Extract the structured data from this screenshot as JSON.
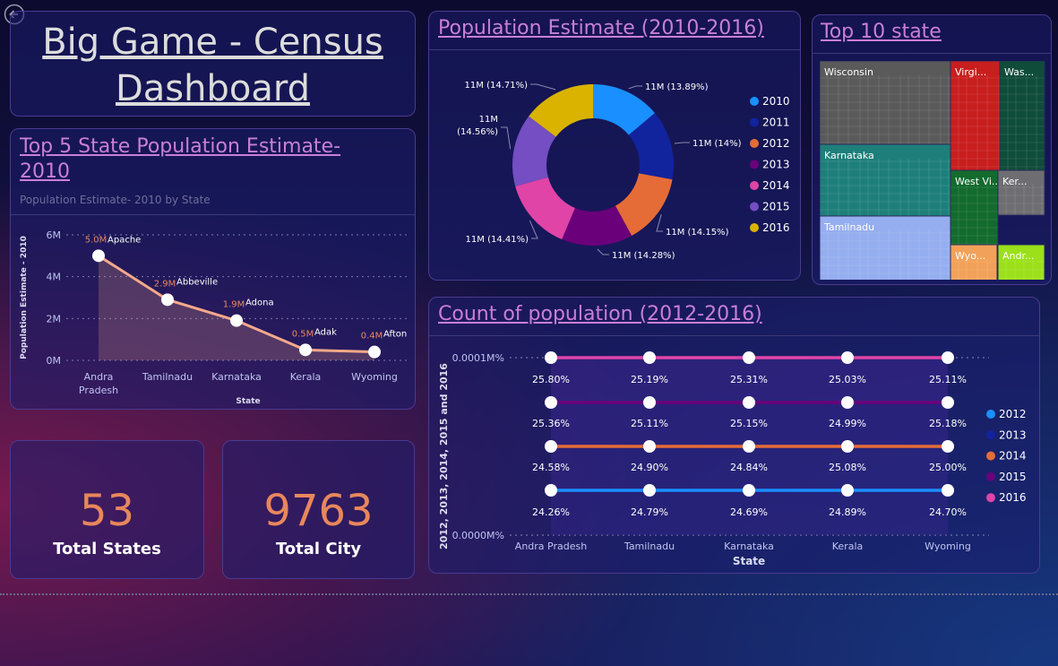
{
  "header": {
    "title_line1": "Big Game - Census",
    "title_line2": "Dashboard"
  },
  "panels": {
    "line_title": "Top 5 State Population Estimate- 2010",
    "line_subtitle": "Population Estimate- 2010 by State",
    "donut_title": "Population Estimate (2010-2016)",
    "treemap_title": "Top 10 state",
    "count_title": "Count of population (2012-2016)"
  },
  "kpis": [
    {
      "value": "53",
      "label": "Total States"
    },
    {
      "value": "9763",
      "label": "Total City"
    }
  ],
  "chart_data": [
    {
      "type": "area",
      "title": "Top 5 State Population Estimate- 2010",
      "subtitle": "Population Estimate- 2010 by State",
      "xlabel": "State",
      "ylabel": "Population Estimate - 2010",
      "categories": [
        "Andra Pradesh",
        "Tamilnadu",
        "Karnataka",
        "Kerala",
        "Wyoming"
      ],
      "values": [
        5.0,
        2.9,
        1.9,
        0.5,
        0.4
      ],
      "value_labels": [
        "5.0M",
        "2.9M",
        "1.9M",
        "0.5M",
        "0.4M"
      ],
      "point_labels": [
        "Apache",
        "Abbeville",
        "Adona",
        "Adak",
        "Afton"
      ],
      "y_ticks": [
        "0M",
        "2M",
        "4M",
        "6M"
      ],
      "ylim": [
        0,
        6
      ],
      "color": "#f6a98a"
    },
    {
      "type": "pie",
      "title": "Population Estimate (2010-2016)",
      "donut": true,
      "categories": [
        "2010",
        "2011",
        "2012",
        "2013",
        "2014",
        "2015",
        "2016"
      ],
      "values": [
        13.89,
        14.0,
        14.15,
        14.28,
        14.41,
        14.56,
        14.71
      ],
      "labels": [
        "11M (13.89%)",
        "11M (14%)",
        "11M (14.15%)",
        "11M (14.28%)",
        "11M (14.41%)",
        "11M (14.56%)",
        "11M (14.71%)"
      ],
      "colors": [
        "#1a8fff",
        "#12239e",
        "#e66c37",
        "#6b007b",
        "#e044a7",
        "#744ec2",
        "#d9b300"
      ],
      "legend": "right"
    },
    {
      "type": "heatmap",
      "subtype": "treemap",
      "title": "Top 10 state",
      "categories": [
        "Wisconsin",
        "Virgi...",
        "Was...",
        "Karnataka",
        "West Vi...",
        "Ker...",
        "Tamilnadu",
        "Wyo...",
        "Andr..."
      ],
      "colors": [
        "#5a5a5a",
        "#c81e1e",
        "#0f4d3a",
        "#1e7f7a",
        "#136b2e",
        "#6e6e72",
        "#95aef0",
        "#f2a15a",
        "#9be01a"
      ]
    },
    {
      "type": "line",
      "title": "Count of population (2012-2016)",
      "xlabel": "State",
      "ylabel": "2012, 2013, 2014, 2015 and 2016",
      "categories": [
        "Andra Pradesh",
        "Tamilnadu",
        "Karnataka",
        "Kerala",
        "Wyoming"
      ],
      "y_ticks": [
        "0.0000M%",
        "0.0001M%"
      ],
      "series": [
        {
          "name": "2016",
          "color": "#e044a7",
          "labels": [
            "25.80%",
            "25.19%",
            "25.31%",
            "25.03%",
            "25.11%"
          ]
        },
        {
          "name": "2015",
          "color": "#6b007b",
          "labels": [
            "25.36%",
            "25.11%",
            "25.15%",
            "24.99%",
            "25.18%"
          ]
        },
        {
          "name": "2014",
          "color": "#e66c37",
          "labels": [
            "24.58%",
            "24.90%",
            "24.84%",
            "25.08%",
            "25.00%"
          ]
        },
        {
          "name": "2012",
          "color": "#1a8fff",
          "labels": [
            "24.26%",
            "24.79%",
            "24.69%",
            "24.89%",
            "24.70%"
          ]
        }
      ],
      "legend": [
        {
          "name": "2012",
          "color": "#1a8fff"
        },
        {
          "name": "2013",
          "color": "#12239e"
        },
        {
          "name": "2014",
          "color": "#e66c37"
        },
        {
          "name": "2015",
          "color": "#6b007b"
        },
        {
          "name": "2016",
          "color": "#e044a7"
        }
      ]
    }
  ]
}
